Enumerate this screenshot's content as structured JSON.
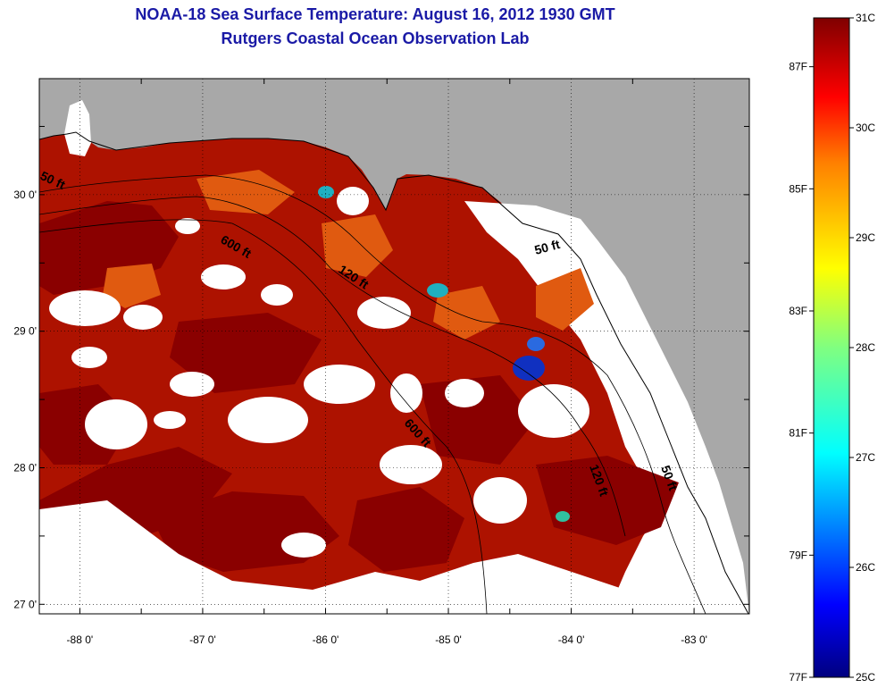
{
  "header": {
    "title": "NOAA-18 Sea Surface Temperature:  August 16, 2012 1930 GMT",
    "subtitle": "Rutgers Coastal Ocean Observation Lab"
  },
  "map": {
    "lon_range": [
      -88.33,
      -82.55
    ],
    "lat_range": [
      26.93,
      30.85
    ],
    "lon_ticks": [
      {
        "value": -88,
        "label": "-88 0'"
      },
      {
        "value": -87,
        "label": "-87 0'"
      },
      {
        "value": -86,
        "label": "-86 0'"
      },
      {
        "value": -85,
        "label": "-85 0'"
      },
      {
        "value": -84,
        "label": "-84 0'"
      },
      {
        "value": -83,
        "label": "-83 0'"
      }
    ],
    "lat_ticks": [
      {
        "value": 30,
        "label": "30 0'"
      },
      {
        "value": 29,
        "label": "29 0'"
      },
      {
        "value": 28,
        "label": "28 0'"
      },
      {
        "value": 27,
        "label": "27 0'"
      }
    ],
    "contour_labels": [
      {
        "id": "c50w",
        "text": "50 ft"
      },
      {
        "id": "c600a",
        "text": "600 ft"
      },
      {
        "id": "c120a",
        "text": "120 ft"
      },
      {
        "id": "c50e",
        "text": "50 ft"
      },
      {
        "id": "c600b",
        "text": "600 ft"
      },
      {
        "id": "c120b",
        "text": "120 ft"
      },
      {
        "id": "c50s",
        "text": "50 ft"
      }
    ],
    "colors": {
      "land": "#a8a8a8",
      "cloud": "#ffffff",
      "warm_dark": "#8f0000",
      "warm": "#c41a00",
      "hot_orange": "#e85a10",
      "cool_blue": "#1030c0"
    }
  },
  "colorbar": {
    "min_c": 25,
    "max_c": 31,
    "c_labels": [
      "31C",
      "30C",
      "29C",
      "28C",
      "27C",
      "26C",
      "25C"
    ],
    "f_labels": [
      "87F",
      "85F",
      "83F",
      "81F",
      "79F",
      "77F"
    ],
    "f_values": [
      87,
      85,
      83,
      81,
      79,
      77
    ],
    "colors": [
      "#00007f",
      "#0000ff",
      "#0080ff",
      "#00ffff",
      "#80ff80",
      "#ffff00",
      "#ff8000",
      "#ff0000",
      "#7f0000"
    ]
  }
}
